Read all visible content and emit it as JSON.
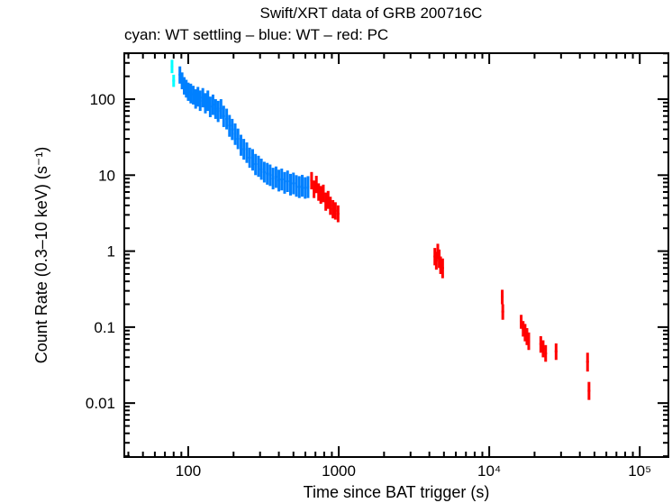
{
  "chart_data": {
    "type": "scatter",
    "title": "Swift/XRT data of GRB 200716C",
    "subtitle": "cyan: WT settling – blue: WT – red: PC",
    "xlabel": "Time since BAT trigger (s)",
    "ylabel": "Count Rate (0.3–10 keV) (s⁻¹)",
    "xscale": "log",
    "yscale": "log",
    "xlim": [
      37.6,
      155000
    ],
    "ylim": [
      0.00195,
      403
    ],
    "grid": false,
    "x_ticks": [
      {
        "value": 100,
        "label": "100"
      },
      {
        "value": 1000,
        "label": "1000"
      },
      {
        "value": 10000,
        "label": "10⁴"
      },
      {
        "value": 100000,
        "label": "10⁵"
      }
    ],
    "y_ticks": [
      {
        "value": 100,
        "label": "100"
      },
      {
        "value": 10,
        "label": "10"
      },
      {
        "value": 1,
        "label": "1"
      },
      {
        "value": 0.1,
        "label": "0.1"
      },
      {
        "value": 0.01,
        "label": "0.01"
      }
    ],
    "series": [
      {
        "name": "WT settling",
        "color": "#00FFFF",
        "points": [
          {
            "t": 78,
            "t_err": 1,
            "rate": 270,
            "rate_lo": 220,
            "rate_hi": 330
          },
          {
            "t": 80,
            "t_err": 1,
            "rate": 175,
            "rate_lo": 145,
            "rate_hi": 210
          }
        ]
      },
      {
        "name": "WT",
        "color": "#0080FF",
        "points": [
          {
            "t": 88,
            "t_err": 1,
            "rate": 210,
            "rate_lo": 160,
            "rate_hi": 270
          },
          {
            "t": 91,
            "t_err": 1,
            "rate": 175,
            "rate_lo": 135,
            "rate_hi": 225
          },
          {
            "t": 94,
            "t_err": 1,
            "rate": 150,
            "rate_lo": 115,
            "rate_hi": 195
          },
          {
            "t": 97,
            "t_err": 1,
            "rate": 140,
            "rate_lo": 105,
            "rate_hi": 180
          },
          {
            "t": 100,
            "t_err": 1,
            "rate": 125,
            "rate_lo": 95,
            "rate_hi": 165
          },
          {
            "t": 104,
            "t_err": 1.5,
            "rate": 120,
            "rate_lo": 88,
            "rate_hi": 160
          },
          {
            "t": 108,
            "t_err": 1.5,
            "rate": 115,
            "rate_lo": 85,
            "rate_hi": 150
          },
          {
            "t": 112,
            "t_err": 1.5,
            "rate": 100,
            "rate_lo": 75,
            "rate_hi": 135
          },
          {
            "t": 116,
            "t_err": 1.5,
            "rate": 110,
            "rate_lo": 80,
            "rate_hi": 145
          },
          {
            "t": 120,
            "t_err": 2,
            "rate": 95,
            "rate_lo": 70,
            "rate_hi": 130
          },
          {
            "t": 125,
            "t_err": 2,
            "rate": 105,
            "rate_lo": 78,
            "rate_hi": 140
          },
          {
            "t": 130,
            "t_err": 2,
            "rate": 90,
            "rate_lo": 65,
            "rate_hi": 120
          },
          {
            "t": 135,
            "t_err": 2,
            "rate": 95,
            "rate_lo": 70,
            "rate_hi": 130
          },
          {
            "t": 140,
            "t_err": 2,
            "rate": 80,
            "rate_lo": 58,
            "rate_hi": 108
          },
          {
            "t": 146,
            "t_err": 2.5,
            "rate": 85,
            "rate_lo": 62,
            "rate_hi": 115
          },
          {
            "t": 152,
            "t_err": 2.5,
            "rate": 75,
            "rate_lo": 55,
            "rate_hi": 100
          },
          {
            "t": 158,
            "t_err": 2.5,
            "rate": 70,
            "rate_lo": 50,
            "rate_hi": 95
          },
          {
            "t": 165,
            "t_err": 3,
            "rate": 75,
            "rate_lo": 55,
            "rate_hi": 100
          },
          {
            "t": 172,
            "t_err": 3,
            "rate": 60,
            "rate_lo": 43,
            "rate_hi": 82
          },
          {
            "t": 180,
            "t_err": 3,
            "rate": 55,
            "rate_lo": 40,
            "rate_hi": 75
          },
          {
            "t": 188,
            "t_err": 3,
            "rate": 45,
            "rate_lo": 32,
            "rate_hi": 62
          },
          {
            "t": 196,
            "t_err": 3.5,
            "rate": 40,
            "rate_lo": 29,
            "rate_hi": 55
          },
          {
            "t": 205,
            "t_err": 3.5,
            "rate": 35,
            "rate_lo": 25,
            "rate_hi": 48
          },
          {
            "t": 214,
            "t_err": 4,
            "rate": 30,
            "rate_lo": 22,
            "rate_hi": 41
          },
          {
            "t": 224,
            "t_err": 4,
            "rate": 25,
            "rate_lo": 18,
            "rate_hi": 34
          },
          {
            "t": 234,
            "t_err": 4.5,
            "rate": 22,
            "rate_lo": 16,
            "rate_hi": 30
          },
          {
            "t": 245,
            "t_err": 4.5,
            "rate": 20,
            "rate_lo": 14.5,
            "rate_hi": 27
          },
          {
            "t": 256,
            "t_err": 5,
            "rate": 17,
            "rate_lo": 12.5,
            "rate_hi": 23
          },
          {
            "t": 268,
            "t_err": 5,
            "rate": 16,
            "rate_lo": 11.5,
            "rate_hi": 22
          },
          {
            "t": 280,
            "t_err": 5.5,
            "rate": 14,
            "rate_lo": 10,
            "rate_hi": 19
          },
          {
            "t": 293,
            "t_err": 5.5,
            "rate": 13,
            "rate_lo": 9.5,
            "rate_hi": 18
          },
          {
            "t": 306,
            "t_err": 6,
            "rate": 12,
            "rate_lo": 8.7,
            "rate_hi": 16.5
          },
          {
            "t": 320,
            "t_err": 6.5,
            "rate": 11,
            "rate_lo": 8,
            "rate_hi": 15
          },
          {
            "t": 335,
            "t_err": 7,
            "rate": 10.5,
            "rate_lo": 7.5,
            "rate_hi": 14.5
          },
          {
            "t": 350,
            "t_err": 7,
            "rate": 10,
            "rate_lo": 7.2,
            "rate_hi": 13.8
          },
          {
            "t": 366,
            "t_err": 7.5,
            "rate": 9,
            "rate_lo": 6.5,
            "rate_hi": 12.5
          },
          {
            "t": 383,
            "t_err": 8,
            "rate": 9.5,
            "rate_lo": 6.8,
            "rate_hi": 13
          },
          {
            "t": 400,
            "t_err": 8,
            "rate": 8.5,
            "rate_lo": 6.1,
            "rate_hi": 11.8
          },
          {
            "t": 418,
            "t_err": 9,
            "rate": 8.8,
            "rate_lo": 6.3,
            "rate_hi": 12.2
          },
          {
            "t": 437,
            "t_err": 9,
            "rate": 8,
            "rate_lo": 5.7,
            "rate_hi": 11
          },
          {
            "t": 457,
            "t_err": 10,
            "rate": 8.3,
            "rate_lo": 6,
            "rate_hi": 11.5
          },
          {
            "t": 478,
            "t_err": 10,
            "rate": 7.5,
            "rate_lo": 5.4,
            "rate_hi": 10.4
          },
          {
            "t": 500,
            "t_err": 11,
            "rate": 7.8,
            "rate_lo": 5.6,
            "rate_hi": 10.8
          },
          {
            "t": 523,
            "t_err": 11,
            "rate": 7.2,
            "rate_lo": 5.2,
            "rate_hi": 10
          },
          {
            "t": 547,
            "t_err": 12,
            "rate": 7,
            "rate_lo": 5,
            "rate_hi": 9.7
          },
          {
            "t": 572,
            "t_err": 12,
            "rate": 7.3,
            "rate_lo": 5.2,
            "rate_hi": 10.1
          },
          {
            "t": 598,
            "t_err": 13,
            "rate": 6.8,
            "rate_lo": 4.9,
            "rate_hi": 9.4
          },
          {
            "t": 625,
            "t_err": 13,
            "rate": 7,
            "rate_lo": 5,
            "rate_hi": 9.7
          }
        ]
      },
      {
        "name": "PC",
        "color": "#FF0000",
        "points": [
          {
            "t": 660,
            "t_err": 8,
            "rate": 8.5,
            "rate_lo": 6.5,
            "rate_hi": 11
          },
          {
            "t": 685,
            "t_err": 8,
            "rate": 6.5,
            "rate_lo": 5,
            "rate_hi": 8.5
          },
          {
            "t": 710,
            "t_err": 8,
            "rate": 7.5,
            "rate_lo": 5.8,
            "rate_hi": 9.8
          },
          {
            "t": 735,
            "t_err": 9,
            "rate": 6,
            "rate_lo": 4.6,
            "rate_hi": 7.8
          },
          {
            "t": 760,
            "t_err": 9,
            "rate": 5.5,
            "rate_lo": 4.2,
            "rate_hi": 7.2
          },
          {
            "t": 790,
            "t_err": 10,
            "rate": 5.8,
            "rate_lo": 4.4,
            "rate_hi": 7.5
          },
          {
            "t": 820,
            "t_err": 10,
            "rate": 4.5,
            "rate_lo": 3.4,
            "rate_hi": 5.9
          },
          {
            "t": 850,
            "t_err": 11,
            "rate": 4.8,
            "rate_lo": 3.6,
            "rate_hi": 6.2
          },
          {
            "t": 880,
            "t_err": 11,
            "rate": 4,
            "rate_lo": 3,
            "rate_hi": 5.2
          },
          {
            "t": 915,
            "t_err": 12,
            "rate": 3.6,
            "rate_lo": 2.7,
            "rate_hi": 4.7
          },
          {
            "t": 950,
            "t_err": 12,
            "rate": 3.4,
            "rate_lo": 2.6,
            "rate_hi": 4.4
          },
          {
            "t": 990,
            "t_err": 14,
            "rate": 3.1,
            "rate_lo": 2.4,
            "rate_hi": 4
          },
          {
            "t": 4350,
            "t_err": 60,
            "rate": 0.85,
            "rate_lo": 0.65,
            "rate_hi": 1.1
          },
          {
            "t": 4450,
            "t_err": 60,
            "rate": 0.75,
            "rate_lo": 0.57,
            "rate_hi": 0.98
          },
          {
            "t": 4550,
            "t_err": 60,
            "rate": 1.0,
            "rate_lo": 0.78,
            "rate_hi": 1.25
          },
          {
            "t": 4650,
            "t_err": 60,
            "rate": 0.8,
            "rate_lo": 0.6,
            "rate_hi": 1.05
          },
          {
            "t": 4750,
            "t_err": 60,
            "rate": 0.65,
            "rate_lo": 0.5,
            "rate_hi": 0.85
          },
          {
            "t": 4900,
            "t_err": 80,
            "rate": 0.6,
            "rate_lo": 0.44,
            "rate_hi": 0.8
          },
          {
            "t": 12200,
            "t_err": 120,
            "rate": 0.25,
            "rate_lo": 0.2,
            "rate_hi": 0.31
          },
          {
            "t": 12300,
            "t_err": 120,
            "rate": 0.16,
            "rate_lo": 0.125,
            "rate_hi": 0.2
          },
          {
            "t": 16300,
            "t_err": 150,
            "rate": 0.12,
            "rate_lo": 0.095,
            "rate_hi": 0.145
          },
          {
            "t": 16800,
            "t_err": 150,
            "rate": 0.095,
            "rate_lo": 0.075,
            "rate_hi": 0.12
          },
          {
            "t": 17300,
            "t_err": 150,
            "rate": 0.085,
            "rate_lo": 0.065,
            "rate_hi": 0.11
          },
          {
            "t": 17800,
            "t_err": 150,
            "rate": 0.075,
            "rate_lo": 0.058,
            "rate_hi": 0.097
          },
          {
            "t": 18300,
            "t_err": 150,
            "rate": 0.065,
            "rate_lo": 0.05,
            "rate_hi": 0.085
          },
          {
            "t": 22000,
            "t_err": 200,
            "rate": 0.06,
            "rate_lo": 0.046,
            "rate_hi": 0.076
          },
          {
            "t": 22800,
            "t_err": 200,
            "rate": 0.052,
            "rate_lo": 0.04,
            "rate_hi": 0.067
          },
          {
            "t": 23700,
            "t_err": 200,
            "rate": 0.045,
            "rate_lo": 0.035,
            "rate_hi": 0.058
          },
          {
            "t": 27800,
            "t_err": 250,
            "rate": 0.048,
            "rate_lo": 0.037,
            "rate_hi": 0.061
          },
          {
            "t": 45000,
            "t_err": 300,
            "rate": 0.035,
            "rate_lo": 0.026,
            "rate_hi": 0.046
          },
          {
            "t": 46000,
            "t_err": 300,
            "rate": 0.0145,
            "rate_lo": 0.011,
            "rate_hi": 0.019
          }
        ]
      }
    ]
  }
}
